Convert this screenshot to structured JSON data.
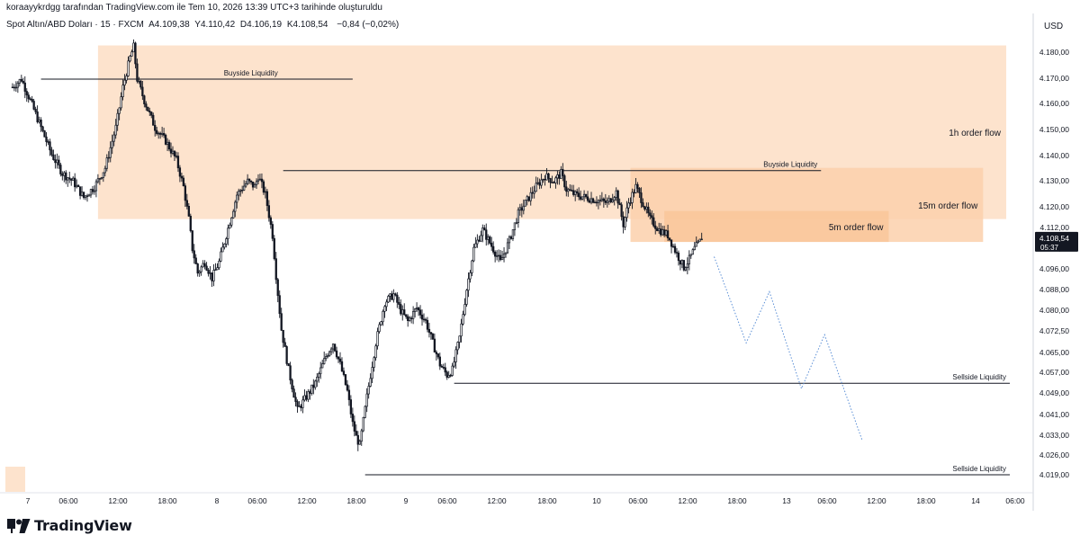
{
  "header": {
    "credit": "koraayykrdgg tarafından TradingView.com ile Tem 10, 2026 13:39 UTC+3 tarihinde oluşturuldu",
    "symbol": "Spot Altın/ABD Doları · 15 · FXCM",
    "open": "A4.109,38",
    "high": "Y4.110,42",
    "low": "D4.106,19",
    "close": "K4.108,54",
    "change": "−0,84 (−0,02%)"
  },
  "currency_label": "USD",
  "brand": {
    "name": "TradingView",
    "icon": "tradingview-logo-icon"
  },
  "colors": {
    "zone_1h": "#fde3cd",
    "zone_15m": "#fbd0ab",
    "zone_5m": "#f9c599",
    "candle": "#131722",
    "projection": "#5b8fd6",
    "price_label_bg": "#131722",
    "price_label_text": "#ffffff"
  },
  "chart_data": {
    "type": "candlestick",
    "symbol": "Spot Altın/ABD Doları",
    "interval": "15",
    "x_tick_labels": [
      "7",
      "06:00",
      "12:00",
      "18:00",
      "8",
      "06:00",
      "12:00",
      "18:00",
      "9",
      "06:00",
      "12:00",
      "18:00",
      "10",
      "06:00",
      "12:00",
      "18:00",
      "13",
      "06:00",
      "12:00",
      "18:00",
      "14",
      "06:00"
    ],
    "y_tick_labels": [
      "4.180,00",
      "4.170,00",
      "4.160,00",
      "4.150,00",
      "4.140,00",
      "4.130,00",
      "4.120,00",
      "4.112,00",
      "4.104,00",
      "4.096,00",
      "4.088,00",
      "4.080,00",
      "4.072,50",
      "4.065,00",
      "4.057,00",
      "4.049,00",
      "4.041,00",
      "4.033,00",
      "4.026,00",
      "4.019,00"
    ],
    "ylim": [
      4016,
      4190
    ],
    "current_price": {
      "value": 4108.54,
      "label": "4.108,54",
      "countdown": "05:37"
    },
    "price_path": [
      [
        0,
        4165
      ],
      [
        5,
        4168
      ],
      [
        10,
        4160
      ],
      [
        16,
        4150
      ],
      [
        22,
        4140
      ],
      [
        28,
        4133
      ],
      [
        34,
        4130
      ],
      [
        40,
        4124
      ],
      [
        46,
        4128
      ],
      [
        52,
        4135
      ],
      [
        58,
        4150
      ],
      [
        62,
        4165
      ],
      [
        66,
        4176
      ],
      [
        68,
        4180
      ],
      [
        70,
        4168
      ],
      [
        74,
        4160
      ],
      [
        80,
        4150
      ],
      [
        86,
        4145
      ],
      [
        92,
        4138
      ],
      [
        96,
        4128
      ],
      [
        99,
        4116
      ],
      [
        101,
        4105
      ],
      [
        104,
        4096
      ],
      [
        108,
        4100
      ],
      [
        112,
        4094
      ],
      [
        116,
        4100
      ],
      [
        120,
        4110
      ],
      [
        126,
        4125
      ],
      [
        132,
        4130
      ],
      [
        136,
        4128
      ],
      [
        138,
        4132
      ],
      [
        142,
        4125
      ],
      [
        146,
        4110
      ],
      [
        148,
        4095
      ],
      [
        151,
        4075
      ],
      [
        155,
        4060
      ],
      [
        160,
        4045
      ],
      [
        165,
        4050
      ],
      [
        170,
        4055
      ],
      [
        176,
        4065
      ],
      [
        180,
        4070
      ],
      [
        184,
        4062
      ],
      [
        188,
        4052
      ],
      [
        191,
        4040
      ],
      [
        193,
        4035
      ],
      [
        195,
        4032
      ],
      [
        199,
        4050
      ],
      [
        204,
        4070
      ],
      [
        209,
        4085
      ],
      [
        214,
        4088
      ],
      [
        218,
        4082
      ],
      [
        222,
        4078
      ],
      [
        227,
        4083
      ],
      [
        232,
        4078
      ],
      [
        236,
        4070
      ],
      [
        240,
        4062
      ],
      [
        244,
        4058
      ],
      [
        247,
        4060
      ],
      [
        251,
        4072
      ],
      [
        255,
        4090
      ],
      [
        259,
        4105
      ],
      [
        264,
        4112
      ],
      [
        269,
        4106
      ],
      [
        274,
        4100
      ],
      [
        279,
        4108
      ],
      [
        284,
        4118
      ],
      [
        289,
        4123
      ],
      [
        294,
        4128
      ],
      [
        299,
        4132
      ],
      [
        304,
        4130
      ],
      [
        308,
        4133
      ],
      [
        311,
        4127
      ],
      [
        316,
        4125
      ],
      [
        322,
        4124
      ],
      [
        328,
        4123
      ],
      [
        334,
        4122
      ],
      [
        339,
        4126
      ],
      [
        343,
        4114
      ],
      [
        346,
        4122
      ],
      [
        350,
        4128
      ],
      [
        354,
        4122
      ],
      [
        358,
        4116
      ],
      [
        363,
        4112
      ],
      [
        368,
        4110
      ],
      [
        373,
        4103
      ],
      [
        377,
        4098
      ],
      [
        380,
        4101
      ],
      [
        383,
        4105
      ],
      [
        387,
        4108.54
      ]
    ],
    "projection": [
      [
        394,
        4102
      ],
      [
        412,
        4070
      ],
      [
        425,
        4089
      ],
      [
        443,
        4053
      ],
      [
        456,
        4073
      ],
      [
        477,
        4034
      ]
    ],
    "zones": [
      {
        "label": "1h order flow",
        "x0": 48,
        "x1": 558,
        "top": 4180.5,
        "bottom": 4116
      },
      {
        "label": "15m order flow",
        "x0": 347,
        "x1": 545,
        "top": 4135,
        "bottom": 4107.5
      },
      {
        "label": "5m order flow",
        "x0": 366,
        "x1": 492,
        "top": 4119,
        "bottom": 4107.5
      }
    ],
    "levels": [
      {
        "label": "Buyside Liquidity",
        "x0": 16,
        "x1": 191,
        "y": 4168
      },
      {
        "label": "Buyside Liquidity",
        "x0": 152,
        "x1": 454,
        "y": 4134
      },
      {
        "label": "Sellside Liquidity",
        "x0": 248,
        "x1": 560,
        "y": 4055
      },
      {
        "label": "Sellside Liquidity",
        "x0": 198,
        "x1": 560,
        "y": 4021
      }
    ],
    "x_range": [
      -4,
      560
    ]
  }
}
